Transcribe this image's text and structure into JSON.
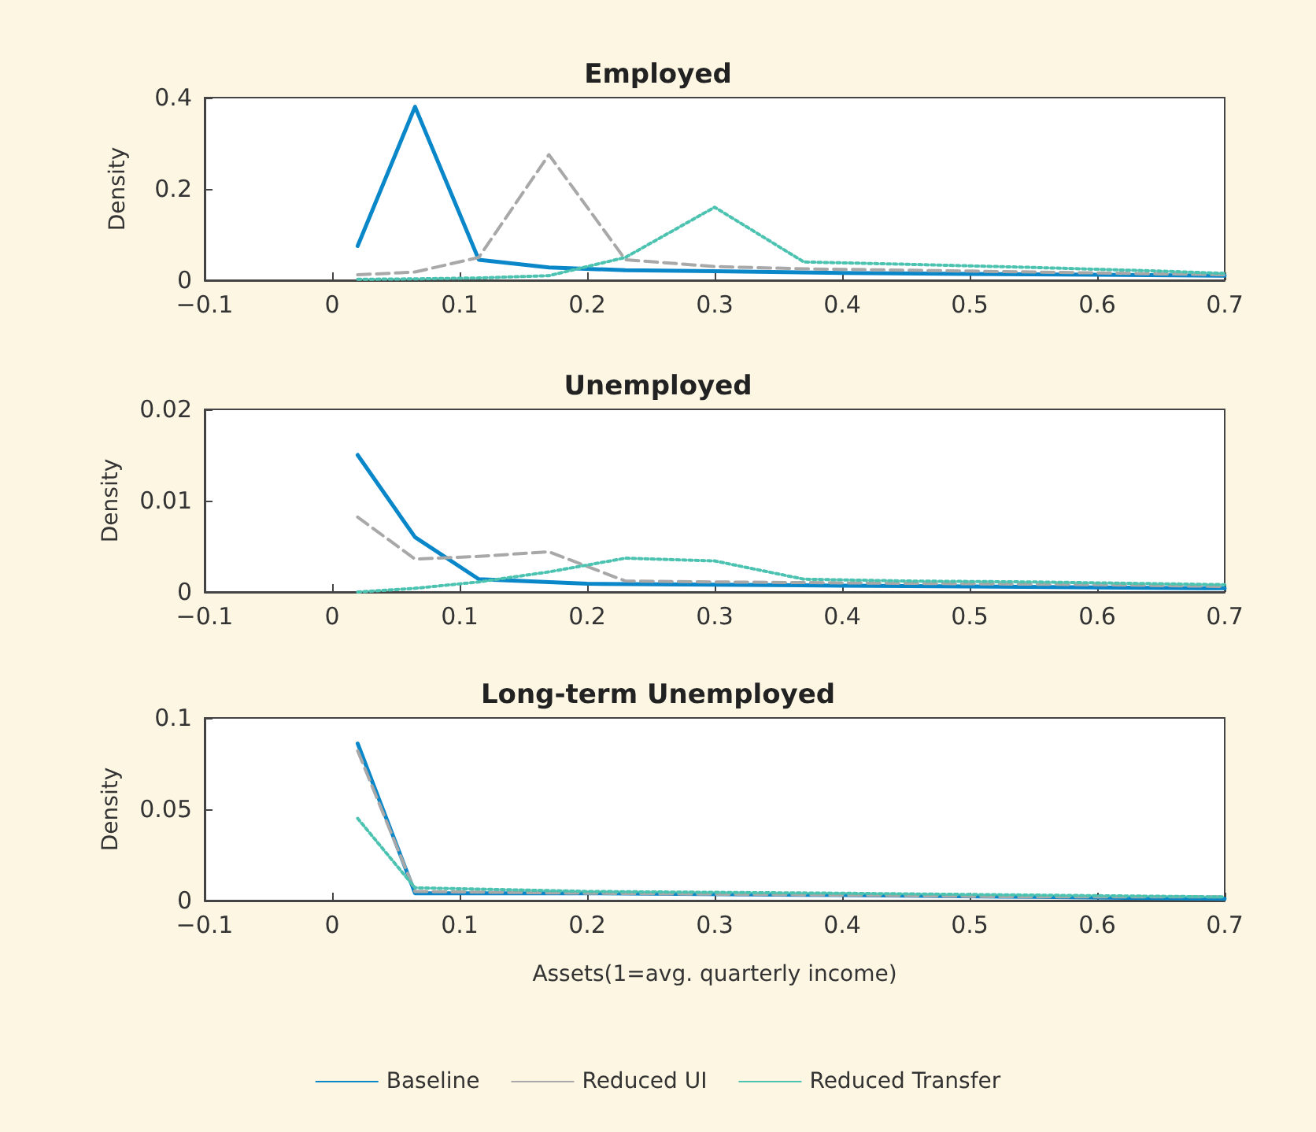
{
  "chart_data": [
    {
      "type": "line",
      "title": "Employed",
      "ylabel": "Density",
      "xlim": [
        -0.1,
        0.7
      ],
      "xticks": [
        -0.1,
        0,
        0.1,
        0.2,
        0.3,
        0.4,
        0.5,
        0.6,
        0.7
      ],
      "ylim": [
        0,
        0.4
      ],
      "yticks": [
        0,
        0.2,
        0.4
      ],
      "marker": "none",
      "series": [
        {
          "color": "#0a87c9",
          "line_style": "solid",
          "x": [
            0.02,
            0.065,
            0.115,
            0.17,
            0.23,
            0.3,
            0.4,
            0.5,
            0.6,
            0.7
          ],
          "values": [
            0.075,
            0.38,
            0.045,
            0.028,
            0.022,
            0.02,
            0.016,
            0.014,
            0.012,
            0.01
          ]
        },
        {
          "color": "#a8a8a8",
          "line_style": "dashed",
          "x": [
            0.02,
            0.065,
            0.115,
            0.17,
            0.23,
            0.3,
            0.37,
            0.45,
            0.55,
            0.65,
            0.7
          ],
          "values": [
            0.012,
            0.018,
            0.05,
            0.275,
            0.045,
            0.03,
            0.025,
            0.022,
            0.018,
            0.014,
            0.012
          ]
        },
        {
          "color": "#4cc2b0",
          "line_style": "dotted",
          "x": [
            0.02,
            0.065,
            0.115,
            0.17,
            0.23,
            0.3,
            0.37,
            0.45,
            0.55,
            0.65,
            0.7
          ],
          "values": [
            0.002,
            0.003,
            0.005,
            0.01,
            0.05,
            0.16,
            0.04,
            0.035,
            0.028,
            0.02,
            0.015
          ]
        }
      ]
    },
    {
      "type": "line",
      "title": "Unemployed",
      "ylabel": "Density",
      "xlim": [
        -0.1,
        0.7
      ],
      "xticks": [
        -0.1,
        0,
        0.1,
        0.2,
        0.3,
        0.4,
        0.5,
        0.6,
        0.7
      ],
      "ylim": [
        0,
        0.02
      ],
      "yticks": [
        0,
        0.01,
        0.02
      ],
      "marker": "none",
      "series": [
        {
          "color": "#0a87c9",
          "line_style": "solid",
          "x": [
            0.02,
            0.065,
            0.115,
            0.2,
            0.3,
            0.4,
            0.5,
            0.6,
            0.7
          ],
          "values": [
            0.015,
            0.006,
            0.0014,
            0.0009,
            0.0008,
            0.0007,
            0.0006,
            0.0005,
            0.0004
          ]
        },
        {
          "color": "#a8a8a8",
          "line_style": "dashed",
          "x": [
            0.02,
            0.065,
            0.115,
            0.17,
            0.23,
            0.3,
            0.4,
            0.5,
            0.6,
            0.7
          ],
          "values": [
            0.0082,
            0.0036,
            0.0039,
            0.0044,
            0.0012,
            0.0011,
            0.001,
            0.0009,
            0.0008,
            0.0006
          ]
        },
        {
          "color": "#4cc2b0",
          "line_style": "dotted",
          "x": [
            0.02,
            0.065,
            0.115,
            0.17,
            0.23,
            0.3,
            0.37,
            0.45,
            0.55,
            0.65,
            0.7
          ],
          "values": [
            0.0,
            0.0004,
            0.0011,
            0.0022,
            0.0037,
            0.0034,
            0.0014,
            0.0012,
            0.0011,
            0.0009,
            0.0008
          ]
        }
      ]
    },
    {
      "type": "line",
      "title": "Long-term Unemployed",
      "xlabel": "Assets(1=avg. quarterly income)",
      "ylabel": "Density",
      "xlim": [
        -0.1,
        0.7
      ],
      "xticks": [
        -0.1,
        0,
        0.1,
        0.2,
        0.3,
        0.4,
        0.5,
        0.6,
        0.7
      ],
      "ylim": [
        0,
        0.1
      ],
      "yticks": [
        0,
        0.05,
        0.1
      ],
      "marker": "none",
      "legend": "bottom",
      "series": [
        {
          "name": "Baseline",
          "color": "#0a87c9",
          "line_style": "solid",
          "x": [
            0.02,
            0.065,
            0.2,
            0.4,
            0.55,
            0.7
          ],
          "values": [
            0.086,
            0.004,
            0.004,
            0.003,
            0.002,
            0.001
          ]
        },
        {
          "name": "Reduced UI",
          "color": "#a8a8a8",
          "line_style": "dashed",
          "x": [
            0.02,
            0.065,
            0.2,
            0.4,
            0.55,
            0.7
          ],
          "values": [
            0.082,
            0.005,
            0.004,
            0.003,
            0.002,
            0.002
          ]
        },
        {
          "name": "Reduced Transfer",
          "color": "#4cc2b0",
          "line_style": "dotted",
          "x": [
            0.02,
            0.065,
            0.2,
            0.4,
            0.55,
            0.7
          ],
          "values": [
            0.045,
            0.007,
            0.005,
            0.004,
            0.003,
            0.002
          ]
        }
      ]
    }
  ]
}
